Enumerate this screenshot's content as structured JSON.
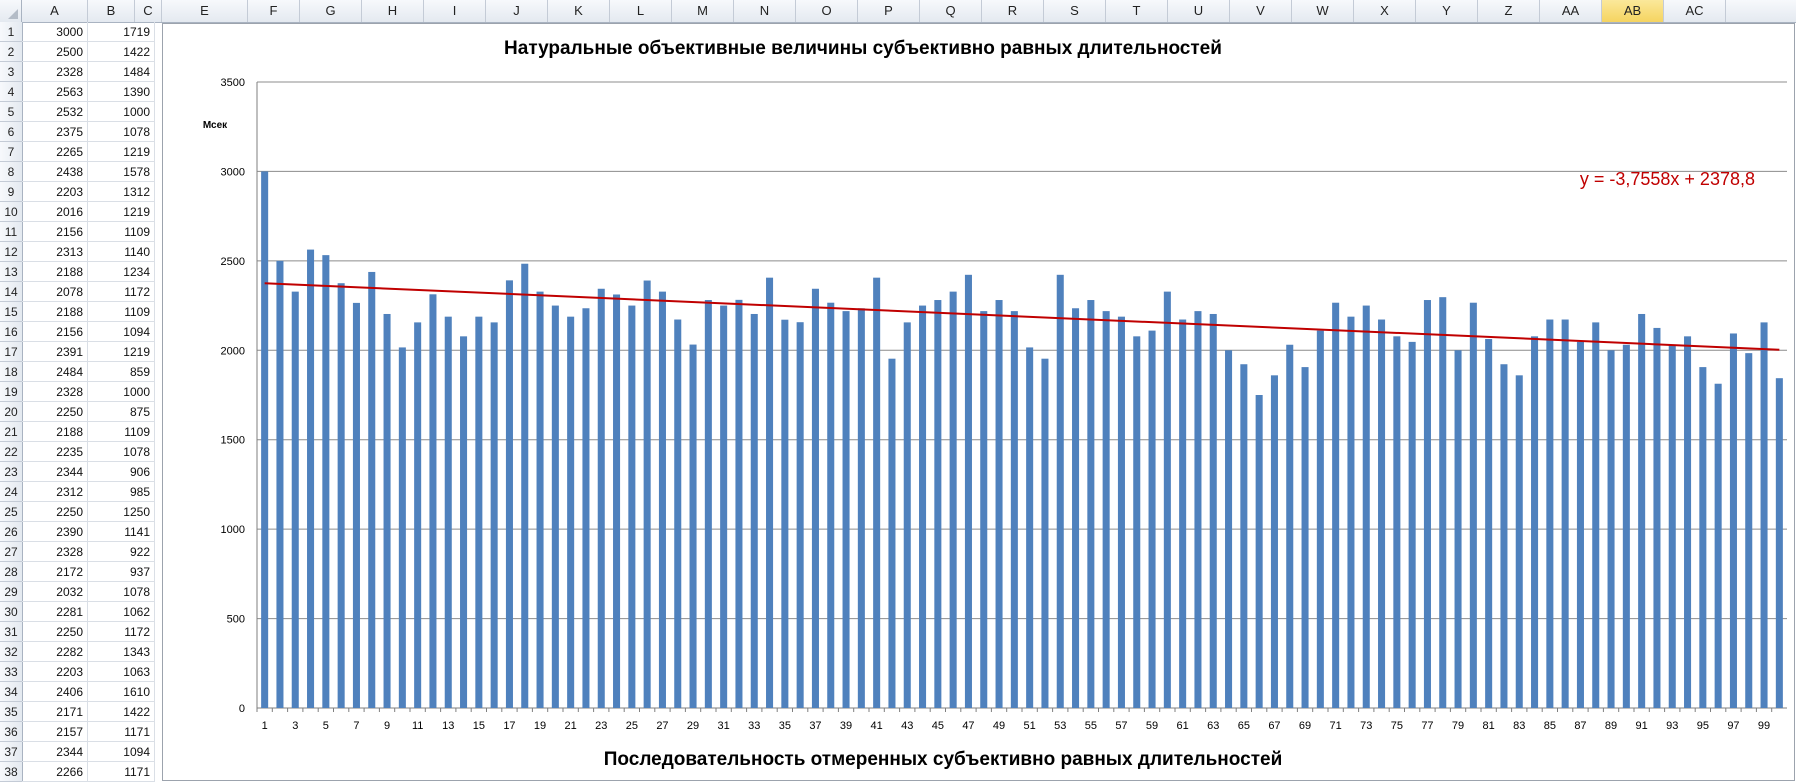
{
  "sheet": {
    "columns": [
      "A",
      "B",
      "C",
      "E",
      "F",
      "G",
      "H",
      "I",
      "J",
      "K",
      "L",
      "M",
      "N",
      "O",
      "P",
      "Q",
      "R",
      "S",
      "T",
      "U",
      "V",
      "W",
      "X",
      "Y",
      "Z",
      "AA",
      "AB",
      "AC"
    ],
    "selected_column": "AB",
    "rows": [
      [
        "1",
        "3000",
        "1719"
      ],
      [
        "2",
        "2500",
        "1422"
      ],
      [
        "3",
        "2328",
        "1484"
      ],
      [
        "4",
        "2563",
        "1390"
      ],
      [
        "5",
        "2532",
        "1000"
      ],
      [
        "6",
        "2375",
        "1078"
      ],
      [
        "7",
        "2265",
        "1219"
      ],
      [
        "8",
        "2438",
        "1578"
      ],
      [
        "9",
        "2203",
        "1312"
      ],
      [
        "10",
        "2016",
        "1219"
      ],
      [
        "11",
        "2156",
        "1109"
      ],
      [
        "12",
        "2313",
        "1140"
      ],
      [
        "13",
        "2188",
        "1234"
      ],
      [
        "14",
        "2078",
        "1172"
      ],
      [
        "15",
        "2188",
        "1109"
      ],
      [
        "16",
        "2156",
        "1094"
      ],
      [
        "17",
        "2391",
        "1219"
      ],
      [
        "18",
        "2484",
        "859"
      ],
      [
        "19",
        "2328",
        "1000"
      ],
      [
        "20",
        "2250",
        "875"
      ],
      [
        "21",
        "2188",
        "1109"
      ],
      [
        "22",
        "2235",
        "1078"
      ],
      [
        "23",
        "2344",
        "906"
      ],
      [
        "24",
        "2312",
        "985"
      ],
      [
        "25",
        "2250",
        "1250"
      ],
      [
        "26",
        "2390",
        "1141"
      ],
      [
        "27",
        "2328",
        "922"
      ],
      [
        "28",
        "2172",
        "937"
      ],
      [
        "29",
        "2032",
        "1078"
      ],
      [
        "30",
        "2281",
        "1062"
      ],
      [
        "31",
        "2250",
        "1172"
      ],
      [
        "32",
        "2282",
        "1343"
      ],
      [
        "33",
        "2203",
        "1063"
      ],
      [
        "34",
        "2406",
        "1610"
      ],
      [
        "35",
        "2171",
        "1422"
      ],
      [
        "36",
        "2157",
        "1171"
      ],
      [
        "37",
        "2344",
        "1094"
      ],
      [
        "38",
        "2266",
        "1171"
      ]
    ]
  },
  "chart_data": {
    "type": "bar",
    "title": "Натуральные объективные величины субъективно равных длительностей",
    "xlabel": "Последовательность отмеренных субъективно равных длительностей",
    "ylabel": "Мсек",
    "ylim": [
      0,
      3500
    ],
    "yticks": [
      "0",
      "500",
      "1000",
      "1500",
      "2000",
      "2500",
      "3000",
      "3500"
    ],
    "grid": true,
    "categories": [
      "1",
      "2",
      "3",
      "4",
      "5",
      "6",
      "7",
      "8",
      "9",
      "10",
      "11",
      "12",
      "13",
      "14",
      "15",
      "16",
      "17",
      "18",
      "19",
      "20",
      "21",
      "22",
      "23",
      "24",
      "25",
      "26",
      "27",
      "28",
      "29",
      "30",
      "31",
      "32",
      "33",
      "34",
      "35",
      "36",
      "37",
      "38",
      "39",
      "40",
      "41",
      "42",
      "43",
      "44",
      "45",
      "46",
      "47",
      "48",
      "49",
      "50",
      "51",
      "52",
      "53",
      "54",
      "55",
      "56",
      "57",
      "58",
      "59",
      "60",
      "61",
      "62",
      "63",
      "64",
      "65",
      "66",
      "67",
      "68",
      "69",
      "70",
      "71",
      "72",
      "73",
      "74",
      "75",
      "76",
      "77",
      "78",
      "79",
      "80",
      "81",
      "82",
      "83",
      "84",
      "85",
      "86",
      "87",
      "88",
      "89",
      "90",
      "91",
      "92",
      "93",
      "94",
      "95",
      "96",
      "97",
      "98",
      "99",
      "100"
    ],
    "xticks_shown": [
      "1",
      "3",
      "5",
      "7",
      "9",
      "11",
      "13",
      "15",
      "17",
      "19",
      "21",
      "23",
      "25",
      "27",
      "29",
      "31",
      "33",
      "35",
      "37",
      "39",
      "41",
      "43",
      "45",
      "47",
      "49",
      "51",
      "53",
      "55",
      "57",
      "59",
      "61",
      "63",
      "65",
      "67",
      "69",
      "71",
      "73",
      "75",
      "77",
      "79",
      "81",
      "83",
      "85",
      "87",
      "89",
      "91",
      "93",
      "95",
      "97",
      "99"
    ],
    "values": [
      3000,
      2500,
      2328,
      2563,
      2532,
      2375,
      2265,
      2438,
      2203,
      2016,
      2156,
      2313,
      2188,
      2078,
      2188,
      2156,
      2391,
      2484,
      2328,
      2250,
      2188,
      2235,
      2344,
      2312,
      2250,
      2390,
      2328,
      2172,
      2032,
      2281,
      2250,
      2282,
      2203,
      2406,
      2171,
      2157,
      2344,
      2266,
      2219,
      2235,
      2406,
      1953,
      2156,
      2250,
      2281,
      2328,
      2422,
      2219,
      2281,
      2219,
      2016,
      1953,
      2422,
      2235,
      2281,
      2219,
      2188,
      2078,
      2110,
      2328,
      2172,
      2219,
      2203,
      2000,
      1922,
      1750,
      1860,
      2031,
      1906,
      2110,
      2266,
      2188,
      2250,
      2172,
      2078,
      2047,
      2281,
      2297,
      2000,
      2266,
      2063,
      1922,
      1860,
      2078,
      2172,
      2172,
      2047,
      2156,
      2000,
      2031,
      2203,
      2125,
      2031,
      2078,
      1906,
      1813,
      2094,
      1984,
      2156,
      1844
    ],
    "trendline": {
      "slope": -3.7558,
      "intercept": 2378.8,
      "label": "y = -3,7558x + 2378,8"
    },
    "colors": {
      "bar": "#4f81bd",
      "trend": "#c00000",
      "grid": "#8c8c8c"
    }
  }
}
